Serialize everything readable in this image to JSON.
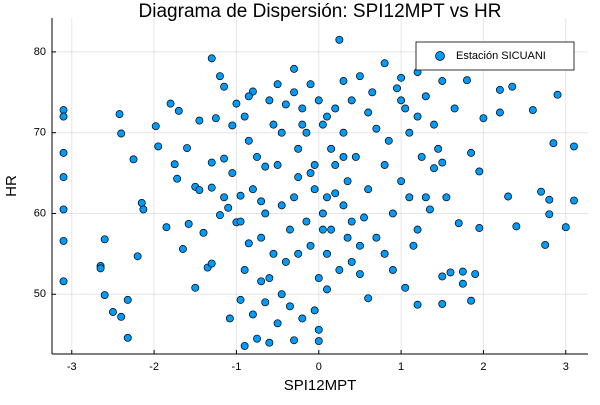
{
  "chart_data": {
    "type": "scatter",
    "title": "Diagrama de Dispersión: SPI12MPT vs HR",
    "x_label": "SPI12MPT",
    "y_label": "HR",
    "x": [
      -3.1,
      -3.1,
      -3.1,
      -3.1,
      -3.1,
      -3.1,
      -3.1,
      -2.65,
      -2.65,
      -2.6,
      -2.6,
      -2.5,
      -2.42,
      -2.4,
      -2.4,
      -2.32,
      -2.32,
      -2.25,
      -2.2,
      -2.15,
      -2.13,
      -1.98,
      -1.95,
      -1.85,
      -1.8,
      -1.75,
      -1.72,
      -1.7,
      -1.65,
      -1.6,
      -1.58,
      -1.5,
      -1.5,
      -1.45,
      -1.45,
      -1.4,
      -1.35,
      -1.3,
      -1.3,
      -1.3,
      -1.3,
      -1.25,
      -1.2,
      -1.2,
      -1.15,
      -1.15,
      -1.1,
      -1.08,
      -1.05,
      -1.0,
      -1.0,
      -0.95,
      -0.95,
      -0.9,
      -0.85,
      -0.8,
      -0.75,
      -0.7,
      -0.65,
      -0.6,
      -0.5,
      -0.3,
      -0.3,
      0.0,
      0.0,
      0.1,
      0.25,
      0.3,
      0.35,
      0.5,
      0.6,
      0.8,
      0.95,
      1.0,
      1.05,
      1.2,
      1.2,
      1.35,
      1.4,
      1.5,
      1.5,
      1.5,
      1.5,
      1.6,
      1.65,
      1.7,
      1.75,
      1.75,
      1.8,
      1.85,
      1.85,
      1.9,
      1.95,
      1.95,
      2.0,
      2.2,
      2.2,
      2.3,
      2.35,
      2.4,
      2.6,
      2.7,
      2.75,
      2.8,
      2.8,
      2.85,
      2.9,
      3.0,
      3.1,
      3.1,
      1.1,
      1.2,
      1.0,
      1.3,
      1.1,
      1.2,
      0.9,
      1.0,
      0.8,
      0.7,
      0.6,
      0.55,
      0.5,
      0.4,
      0.6,
      0.7,
      0.45,
      0.3,
      0.2,
      0.15,
      0.1,
      0.05,
      0.05,
      0.1,
      0.0,
      -0.05,
      -0.1,
      -0.1,
      -0.15,
      -0.2,
      -0.25,
      -0.3,
      -0.35,
      -0.4,
      -0.45,
      -0.5,
      -0.55,
      -0.6,
      -0.65,
      -0.7,
      -0.75,
      -0.8,
      -0.85,
      -0.9,
      -0.95,
      -0.4,
      -0.3,
      -0.2,
      0.0,
      0.1,
      0.2,
      0.3,
      0.35,
      -0.05,
      -0.15,
      -0.25,
      -0.45,
      -0.55,
      -0.6,
      -0.35,
      -0.2,
      0.25,
      0.5,
      0.8,
      0.9,
      1.15,
      1.3,
      1.4,
      1.45,
      0.85,
      0.65,
      0.4,
      -0.1,
      -0.5,
      -0.85,
      -1.05,
      -1.15,
      -0.7,
      -0.45,
      0.15,
      0.2,
      -0.05,
      0.4,
      1.05,
      1.25,
      1.55,
      -0.9,
      -0.8,
      -0.65,
      0.05,
      -0.25,
      0.3
    ],
    "series": [
      {
        "name": "Estación SICUANI",
        "color": "#009afa",
        "values": [
          72.8,
          72,
          67.5,
          64.5,
          60.5,
          56.6,
          51.6,
          53.5,
          53.2,
          56.8,
          49.9,
          47.8,
          72.3,
          69.9,
          47.2,
          49.3,
          44.6,
          66.7,
          54.7,
          61.3,
          60.5,
          70.8,
          68.3,
          58.3,
          73.6,
          66.1,
          64.3,
          72.7,
          55.6,
          68.1,
          58.7,
          50.8,
          63.3,
          62.9,
          71.5,
          57.6,
          53.3,
          53.8,
          63.2,
          66.3,
          79.2,
          71.8,
          77,
          59.8,
          66.8,
          75.7,
          60.7,
          47,
          70.9,
          73.6,
          58.9,
          49.3,
          62.2,
          43.6,
          56.3,
          75.1,
          44.5,
          51.6,
          65.8,
          44,
          46.4,
          77.9,
          44.3,
          44.2,
          45.6,
          50.6,
          81.5,
          76.4,
          57,
          77,
          49.5,
          78.6,
          75.5,
          76.8,
          50.8,
          48.7,
          77.5,
          60.5,
          65.6,
          76.4,
          66.3,
          52.2,
          48.8,
          52.7,
          73,
          58.8,
          52.8,
          51.3,
          76.5,
          67.5,
          49.2,
          52.5,
          58.2,
          65.2,
          71.8,
          72.5,
          75.3,
          62.1,
          75.7,
          58.4,
          72.8,
          62.7,
          56.1,
          61.7,
          59.9,
          68.7,
          74.7,
          58.3,
          61.6,
          68.3,
          70,
          72,
          74,
          74.5,
          62,
          58,
          60,
          64,
          66,
          70.5,
          72.5,
          59.5,
          56,
          54,
          63,
          57,
          67,
          70,
          73,
          68,
          62,
          60,
          58,
          55,
          52,
          48,
          56,
          65,
          70,
          73,
          68,
          62,
          58,
          54,
          50,
          66,
          71,
          74,
          60,
          57,
          67,
          63,
          69,
          72,
          59,
          73.5,
          75,
          71,
          74,
          72,
          66,
          61,
          64,
          63,
          59,
          55,
          61,
          55,
          52,
          48.5,
          47,
          53,
          52.5,
          55,
          53,
          56,
          62,
          71,
          68,
          69,
          75,
          74,
          76,
          76,
          74.5,
          65,
          62,
          61.5,
          70,
          58,
          62.5,
          66,
          59,
          73,
          67,
          62,
          53,
          47.5,
          49,
          71,
          64.5,
          67
        ]
      }
    ],
    "xlim": [
      -3.24,
      3.27
    ],
    "ylim": [
      42.6,
      84.2
    ],
    "xticks": [
      -3,
      -2,
      -1,
      0,
      1,
      2,
      3
    ],
    "yticks": [
      50,
      60,
      70,
      80
    ],
    "grid": true,
    "legend": "top-right"
  }
}
